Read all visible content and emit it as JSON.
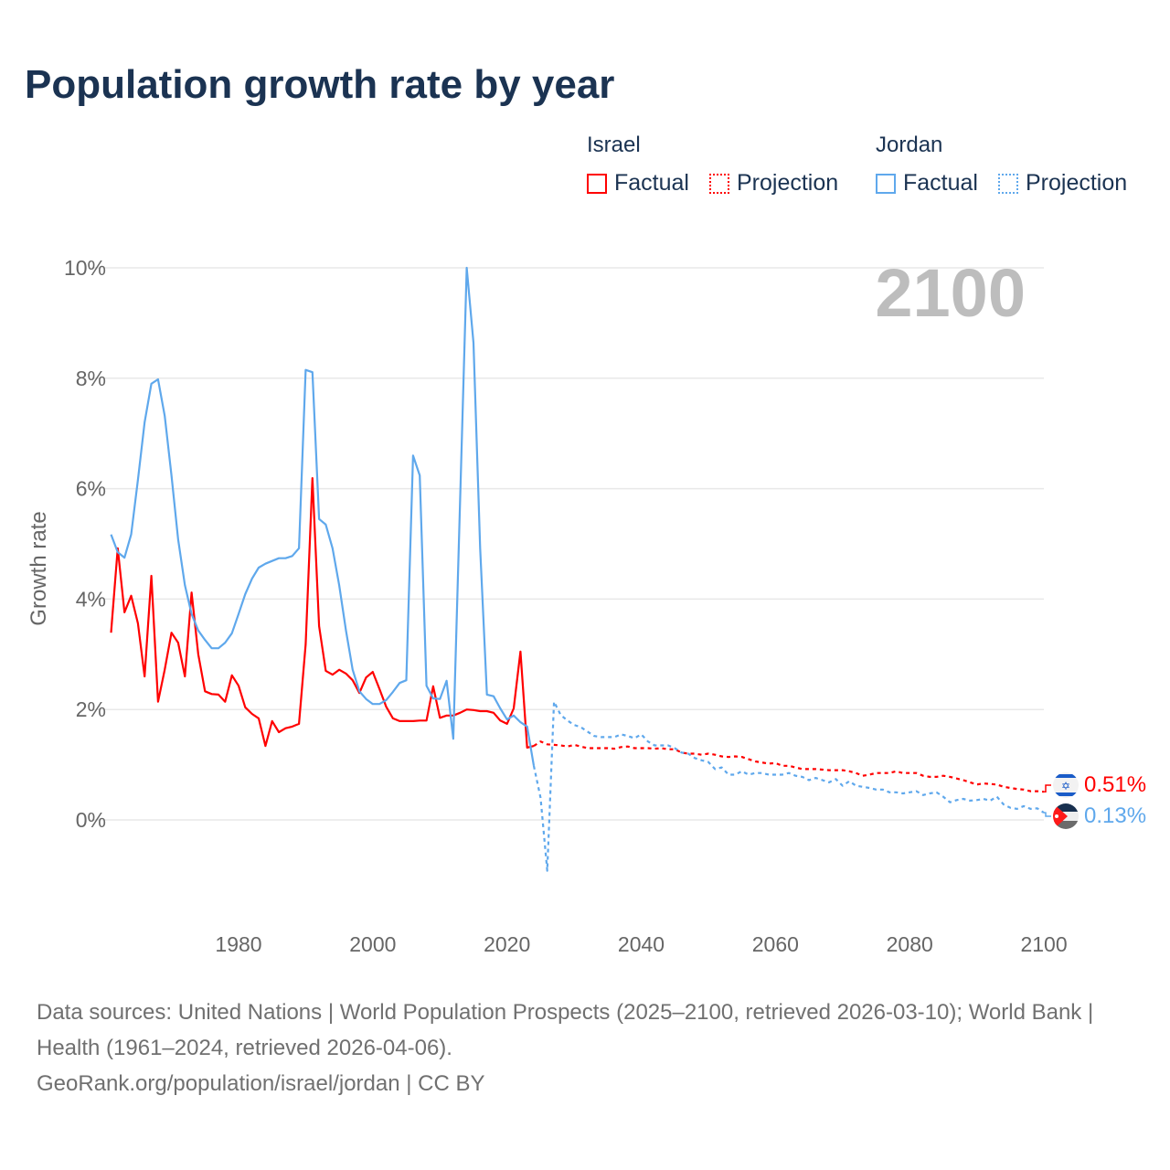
{
  "title": "Population growth rate by year",
  "legend": {
    "groups": [
      {
        "name": "Israel",
        "factual": "Factual",
        "projection": "Projection",
        "color": "#ff0000"
      },
      {
        "name": "Jordan",
        "factual": "Factual",
        "projection": "Projection",
        "color": "#5fa8ec"
      }
    ]
  },
  "current_year": "2100",
  "end_labels": {
    "israel": "0.51%",
    "jordan": "0.13%"
  },
  "footer": {
    "sources": "Data sources: United Nations | World Population Prospects (2025–2100, retrieved 2026-03-10); World Bank | Health (1961–2024, retrieved 2026-04-06).",
    "link": "GeoRank.org/population/israel/jordan | CC BY"
  },
  "chart_data": {
    "type": "line",
    "title": "Population growth rate by year",
    "xlabel": "",
    "ylabel": "Growth rate",
    "xlim": [
      1961,
      2100
    ],
    "ylim": [
      -1.5,
      10
    ],
    "xticks": [
      1980,
      2000,
      2020,
      2040,
      2060,
      2080,
      2100
    ],
    "yticks": [
      0,
      2,
      4,
      6,
      8,
      10
    ],
    "ytick_labels": [
      "0%",
      "2%",
      "4%",
      "6%",
      "8%",
      "10%"
    ],
    "grid": true,
    "legend_position": "top-right",
    "series": [
      {
        "name": "Israel Factual",
        "color": "#ff0000",
        "style": "solid",
        "start": 1961,
        "values": [
          3.39,
          4.92,
          3.76,
          4.06,
          3.56,
          2.6,
          4.42,
          2.14,
          2.72,
          3.39,
          3.21,
          2.6,
          4.12,
          3.0,
          2.33,
          2.28,
          2.27,
          2.14,
          2.62,
          2.43,
          2.04,
          1.92,
          1.84,
          1.34,
          1.79,
          1.59,
          1.66,
          1.69,
          1.74,
          3.18,
          6.19,
          3.51,
          2.7,
          2.63,
          2.72,
          2.65,
          2.53,
          2.3,
          2.58,
          2.68,
          2.37,
          2.05,
          1.84,
          1.79,
          1.79,
          1.79,
          1.8,
          1.8,
          2.42,
          1.85,
          1.89,
          1.89,
          1.94,
          2.0,
          1.99,
          1.97,
          1.97,
          1.94,
          1.8,
          1.74,
          2.02,
          3.05,
          1.31,
          1.34
        ]
      },
      {
        "name": "Israel Projection",
        "color": "#ff0000",
        "style": "dashed",
        "start": 2024,
        "values": [
          1.34,
          1.42,
          1.37,
          1.36,
          1.35,
          1.33,
          1.36,
          1.33,
          1.3,
          1.3,
          1.3,
          1.3,
          1.29,
          1.32,
          1.33,
          1.3,
          1.3,
          1.3,
          1.29,
          1.3,
          1.28,
          1.28,
          1.22,
          1.2,
          1.2,
          1.18,
          1.2,
          1.18,
          1.15,
          1.14,
          1.15,
          1.14,
          1.1,
          1.06,
          1.04,
          1.02,
          1.03,
          0.98,
          0.98,
          0.95,
          0.92,
          0.92,
          0.92,
          0.91,
          0.9,
          0.9,
          0.9,
          0.88,
          0.85,
          0.8,
          0.82,
          0.85,
          0.85,
          0.85,
          0.88,
          0.85,
          0.85,
          0.85,
          0.8,
          0.78,
          0.78,
          0.8,
          0.78,
          0.75,
          0.72,
          0.68,
          0.64,
          0.66,
          0.65,
          0.64,
          0.6,
          0.58,
          0.56,
          0.55,
          0.52,
          0.52,
          0.51
        ]
      },
      {
        "name": "Jordan Factual",
        "color": "#5fa8ec",
        "style": "solid",
        "start": 1961,
        "values": [
          5.17,
          4.85,
          4.75,
          5.17,
          6.16,
          7.2,
          7.9,
          7.98,
          7.32,
          6.24,
          5.08,
          4.25,
          3.73,
          3.43,
          3.26,
          3.11,
          3.11,
          3.21,
          3.38,
          3.73,
          4.09,
          4.37,
          4.57,
          4.64,
          4.69,
          4.74,
          4.74,
          4.78,
          4.92,
          8.15,
          8.11,
          5.45,
          5.35,
          4.92,
          4.25,
          3.43,
          2.72,
          2.33,
          2.19,
          2.1,
          2.1,
          2.17,
          2.32,
          2.48,
          2.53,
          6.6,
          6.24,
          2.43,
          2.2,
          2.19,
          2.52,
          1.47,
          5.75,
          10.0,
          8.64,
          4.92,
          2.27,
          2.24,
          2.02,
          1.82,
          1.89,
          1.77,
          1.69,
          0.98
        ]
      },
      {
        "name": "Jordan Projection",
        "color": "#5fa8ec",
        "style": "dashed",
        "start": 2024,
        "values": [
          0.98,
          0.4,
          -0.92,
          2.14,
          1.9,
          1.8,
          1.72,
          1.68,
          1.6,
          1.52,
          1.5,
          1.5,
          1.5,
          1.55,
          1.52,
          1.48,
          1.55,
          1.42,
          1.35,
          1.35,
          1.35,
          1.3,
          1.22,
          1.2,
          1.12,
          1.08,
          1.05,
          0.92,
          0.95,
          0.82,
          0.82,
          0.88,
          0.82,
          0.85,
          0.85,
          0.82,
          0.82,
          0.82,
          0.85,
          0.8,
          0.78,
          0.72,
          0.76,
          0.72,
          0.68,
          0.74,
          0.62,
          0.7,
          0.62,
          0.6,
          0.58,
          0.55,
          0.55,
          0.5,
          0.5,
          0.48,
          0.5,
          0.52,
          0.45,
          0.48,
          0.5,
          0.42,
          0.32,
          0.36,
          0.38,
          0.35,
          0.36,
          0.38,
          0.35,
          0.42,
          0.28,
          0.22,
          0.2,
          0.25,
          0.2,
          0.21,
          0.13
        ]
      }
    ]
  }
}
